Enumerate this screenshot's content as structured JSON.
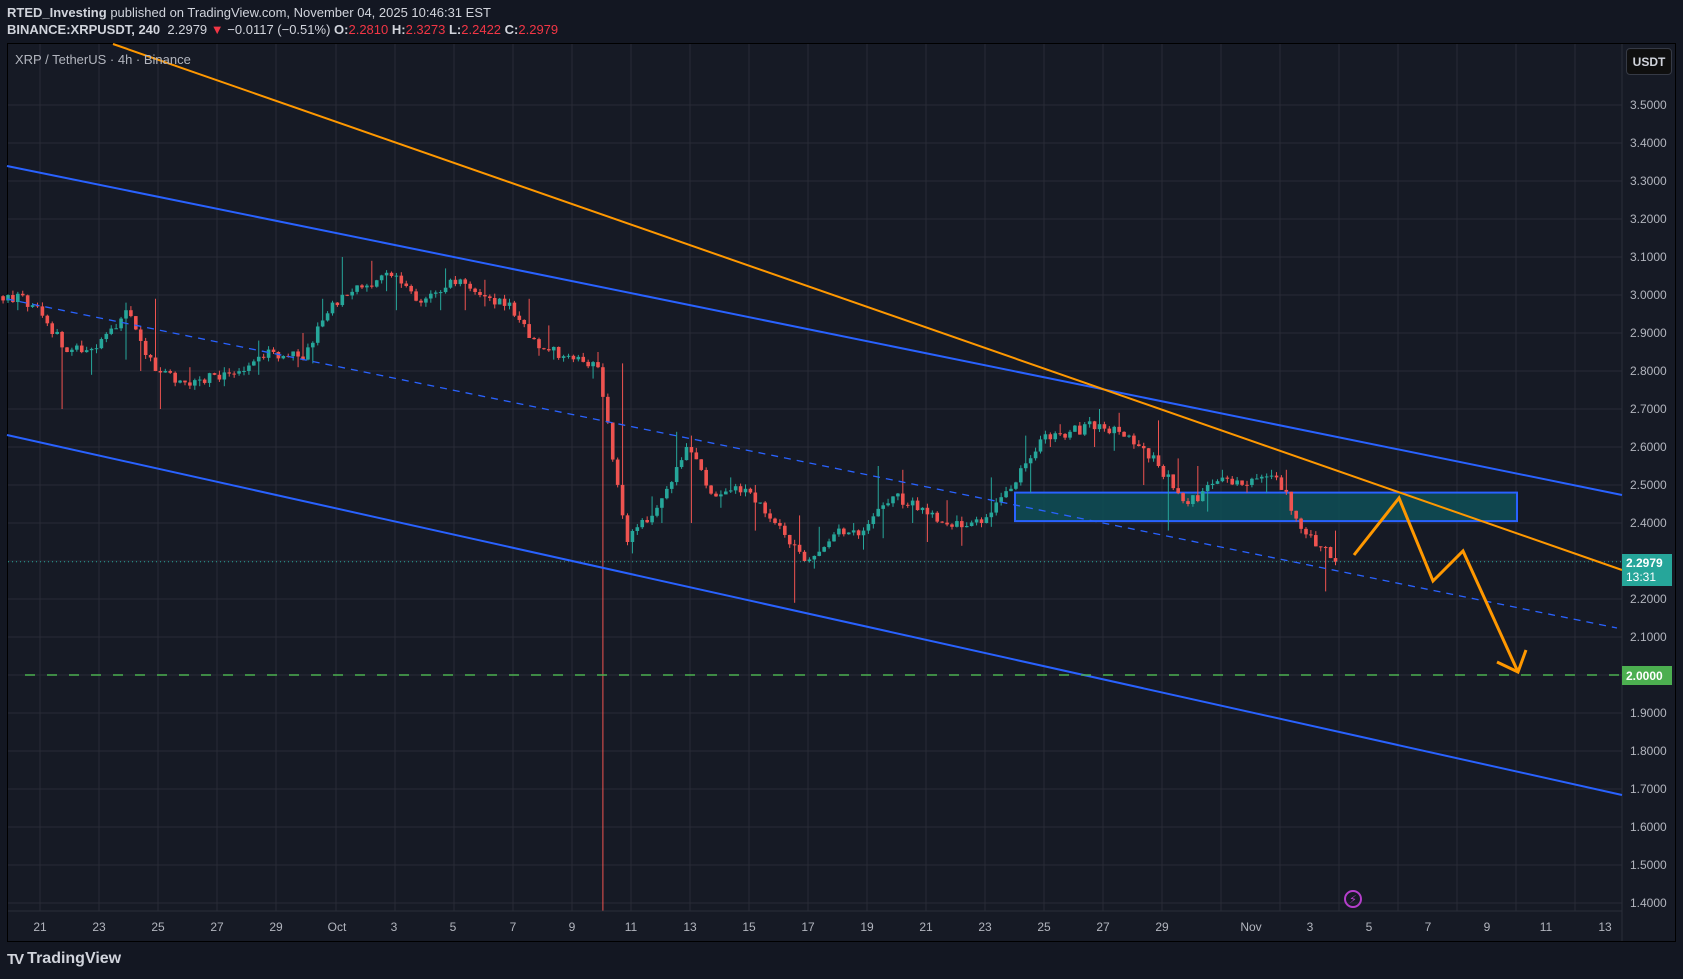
{
  "header": {
    "author": "RTED_Investing",
    "published_text": "published on TradingView.com, November 04, 2025 10:46:31 EST",
    "symbol": "BINANCE:XRPUSDT, 240",
    "last": "2.2979",
    "change": "−0.0117 (−0.51%)",
    "o_label": "O:",
    "o": "2.2810",
    "h_label": "H:",
    "h": "2.3273",
    "l_label": "L:",
    "l": "2.2422",
    "c_label": "C:",
    "c": "2.2979",
    "down_arrow": "▼"
  },
  "legend": "XRP / TetherUS · 4h · Binance",
  "currency_button": "USDT",
  "price_tag": {
    "price": "2.2979",
    "countdown": "13:31"
  },
  "target_tag": "2.0000",
  "brand": "TradingView",
  "colors": {
    "up": "#26a69a",
    "down": "#ef5350",
    "trend_blue": "#2962ff",
    "trend_orange": "#ff9800",
    "target_green": "#4caf50",
    "zone_fill": "#0e4f57",
    "zone_border": "#2962ff",
    "event_purple": "#b43ecb"
  },
  "chart_data": {
    "type": "candlestick",
    "title": "XRP / TetherUS · 4h · Binance",
    "ylabel": "USDT",
    "ylim": [
      1.37,
      3.6
    ],
    "y_ticks": [
      "3.5000",
      "3.4000",
      "3.3000",
      "3.2000",
      "3.1000",
      "3.0000",
      "2.9000",
      "2.8000",
      "2.7000",
      "2.6000",
      "2.5000",
      "2.4000",
      "2.3000",
      "2.2000",
      "2.1000",
      "2.0000",
      "1.9000",
      "1.8000",
      "1.7000",
      "1.6000",
      "1.5000",
      "1.4000"
    ],
    "x_ticks": [
      "21",
      "23",
      "25",
      "27",
      "29",
      "Oct",
      "3",
      "5",
      "7",
      "9",
      "11",
      "13",
      "15",
      "17",
      "19",
      "21",
      "23",
      "25",
      "27",
      "29",
      "Nov",
      "3",
      "5",
      "7",
      "9",
      "11",
      "13"
    ],
    "daily_path": [
      {
        "d": "Sep 20",
        "o": 2.99,
        "h": 3.01,
        "l": 2.97,
        "c": 3.0
      },
      {
        "d": "Sep 21",
        "o": 3.0,
        "h": 3.01,
        "l": 2.96,
        "c": 2.97
      },
      {
        "d": "Sep 22",
        "o": 2.97,
        "h": 2.98,
        "l": 2.7,
        "c": 2.85
      },
      {
        "d": "Sep 23",
        "o": 2.85,
        "h": 2.88,
        "l": 2.79,
        "c": 2.86
      },
      {
        "d": "Sep 24",
        "o": 2.86,
        "h": 2.98,
        "l": 2.83,
        "c": 2.96
      },
      {
        "d": "Sep 25",
        "o": 2.96,
        "h": 2.99,
        "l": 2.8,
        "c": 2.8
      },
      {
        "d": "Sep 26",
        "o": 2.8,
        "h": 2.81,
        "l": 2.7,
        "c": 2.77
      },
      {
        "d": "Sep 27",
        "o": 2.77,
        "h": 2.81,
        "l": 2.76,
        "c": 2.79
      },
      {
        "d": "Sep 28",
        "o": 2.79,
        "h": 2.81,
        "l": 2.76,
        "c": 2.8
      },
      {
        "d": "Sep 29",
        "o": 2.8,
        "h": 2.88,
        "l": 2.79,
        "c": 2.85
      },
      {
        "d": "Sep 30",
        "o": 2.85,
        "h": 2.9,
        "l": 2.81,
        "c": 2.83
      },
      {
        "d": "Oct 1",
        "o": 2.83,
        "h": 2.99,
        "l": 2.82,
        "c": 2.98
      },
      {
        "d": "Oct 2",
        "o": 2.98,
        "h": 3.1,
        "l": 2.97,
        "c": 3.02
      },
      {
        "d": "Oct 3",
        "o": 3.02,
        "h": 3.09,
        "l": 3.01,
        "c": 3.05
      },
      {
        "d": "Oct 4",
        "o": 3.05,
        "h": 3.06,
        "l": 2.96,
        "c": 2.98
      },
      {
        "d": "Oct 5",
        "o": 2.98,
        "h": 3.07,
        "l": 2.96,
        "c": 3.04
      },
      {
        "d": "Oct 6",
        "o": 3.04,
        "h": 3.05,
        "l": 2.96,
        "c": 3.0
      },
      {
        "d": "Oct 7",
        "o": 3.0,
        "h": 3.04,
        "l": 2.97,
        "c": 2.98
      },
      {
        "d": "Oct 8",
        "o": 2.98,
        "h": 2.99,
        "l": 2.84,
        "c": 2.86
      },
      {
        "d": "Oct 9",
        "o": 2.86,
        "h": 2.92,
        "l": 2.83,
        "c": 2.84
      },
      {
        "d": "Oct 10",
        "o": 2.84,
        "h": 2.85,
        "l": 2.78,
        "c": 2.81
      },
      {
        "d": "Oct 11",
        "o": 2.81,
        "h": 2.82,
        "l": 1.38,
        "c": 2.35
      },
      {
        "d": "Oct 12",
        "o": 2.35,
        "h": 2.47,
        "l": 2.32,
        "c": 2.44
      },
      {
        "d": "Oct 13",
        "o": 2.44,
        "h": 2.64,
        "l": 2.4,
        "c": 2.6
      },
      {
        "d": "Oct 14",
        "o": 2.6,
        "h": 2.63,
        "l": 2.4,
        "c": 2.47
      },
      {
        "d": "Oct 15",
        "o": 2.47,
        "h": 2.52,
        "l": 2.44,
        "c": 2.49
      },
      {
        "d": "Oct 16",
        "o": 2.49,
        "h": 2.5,
        "l": 2.38,
        "c": 2.4
      },
      {
        "d": "Oct 17",
        "o": 2.4,
        "h": 2.42,
        "l": 2.19,
        "c": 2.3
      },
      {
        "d": "Oct 18",
        "o": 2.3,
        "h": 2.39,
        "l": 2.28,
        "c": 2.37
      },
      {
        "d": "Oct 19",
        "o": 2.37,
        "h": 2.4,
        "l": 2.33,
        "c": 2.38
      },
      {
        "d": "Oct 20",
        "o": 2.38,
        "h": 2.55,
        "l": 2.36,
        "c": 2.47
      },
      {
        "d": "Oct 21",
        "o": 2.47,
        "h": 2.54,
        "l": 2.4,
        "c": 2.44
      },
      {
        "d": "Oct 22",
        "o": 2.44,
        "h": 2.46,
        "l": 2.35,
        "c": 2.39
      },
      {
        "d": "Oct 23",
        "o": 2.39,
        "h": 2.42,
        "l": 2.34,
        "c": 2.4
      },
      {
        "d": "Oct 24",
        "o": 2.4,
        "h": 2.52,
        "l": 2.39,
        "c": 2.49
      },
      {
        "d": "Oct 25",
        "o": 2.49,
        "h": 2.63,
        "l": 2.48,
        "c": 2.62
      },
      {
        "d": "Oct 26",
        "o": 2.62,
        "h": 2.66,
        "l": 2.6,
        "c": 2.64
      },
      {
        "d": "Oct 27",
        "o": 2.64,
        "h": 2.7,
        "l": 2.6,
        "c": 2.66
      },
      {
        "d": "Oct 28",
        "o": 2.66,
        "h": 2.69,
        "l": 2.59,
        "c": 2.63
      },
      {
        "d": "Oct 29",
        "o": 2.63,
        "h": 2.67,
        "l": 2.5,
        "c": 2.55
      },
      {
        "d": "Oct 30",
        "o": 2.55,
        "h": 2.57,
        "l": 2.38,
        "c": 2.45
      },
      {
        "d": "Oct 31",
        "o": 2.45,
        "h": 2.55,
        "l": 2.43,
        "c": 2.51
      },
      {
        "d": "Nov 1",
        "o": 2.51,
        "h": 2.54,
        "l": 2.48,
        "c": 2.5
      },
      {
        "d": "Nov 2",
        "o": 2.5,
        "h": 2.54,
        "l": 2.48,
        "c": 2.52
      },
      {
        "d": "Nov 3",
        "o": 2.52,
        "h": 2.54,
        "l": 2.36,
        "c": 2.37
      },
      {
        "d": "Nov 4",
        "o": 2.37,
        "h": 2.38,
        "l": 2.22,
        "c": 2.2979
      }
    ],
    "current_price": 2.2979,
    "drawings": {
      "upper_channel": {
        "from": [
          3.34,
          "Sep 20"
        ],
        "to": [
          2.48,
          "Nov 13"
        ],
        "color": "#2962ff"
      },
      "lower_channel": {
        "from": [
          2.63,
          "Sep 20"
        ],
        "to": [
          1.77,
          "Nov 13"
        ],
        "color": "#2962ff"
      },
      "mid_channel_dashed": {
        "from": [
          2.99,
          "Sep 20"
        ],
        "to": [
          2.12,
          "Nov 13"
        ],
        "color": "#2962ff"
      },
      "descending_trendline": {
        "from": [
          3.62,
          "Sep 22"
        ],
        "to": [
          2.27,
          "Nov 13"
        ],
        "color": "#ff9800"
      },
      "resistance_zone": {
        "top": 2.48,
        "bottom": 2.405,
        "start": "Oct 24",
        "end": "Nov 10"
      },
      "target_level": {
        "price": 2.0,
        "style": "dashed",
        "color": "#4caf50"
      },
      "projection_path": [
        [
          2.33,
          "Nov 4"
        ],
        [
          2.47,
          "Nov 6"
        ],
        [
          2.25,
          "Nov 7"
        ],
        [
          2.33,
          "Nov 8"
        ],
        [
          2.01,
          "Nov 10"
        ]
      ]
    }
  }
}
